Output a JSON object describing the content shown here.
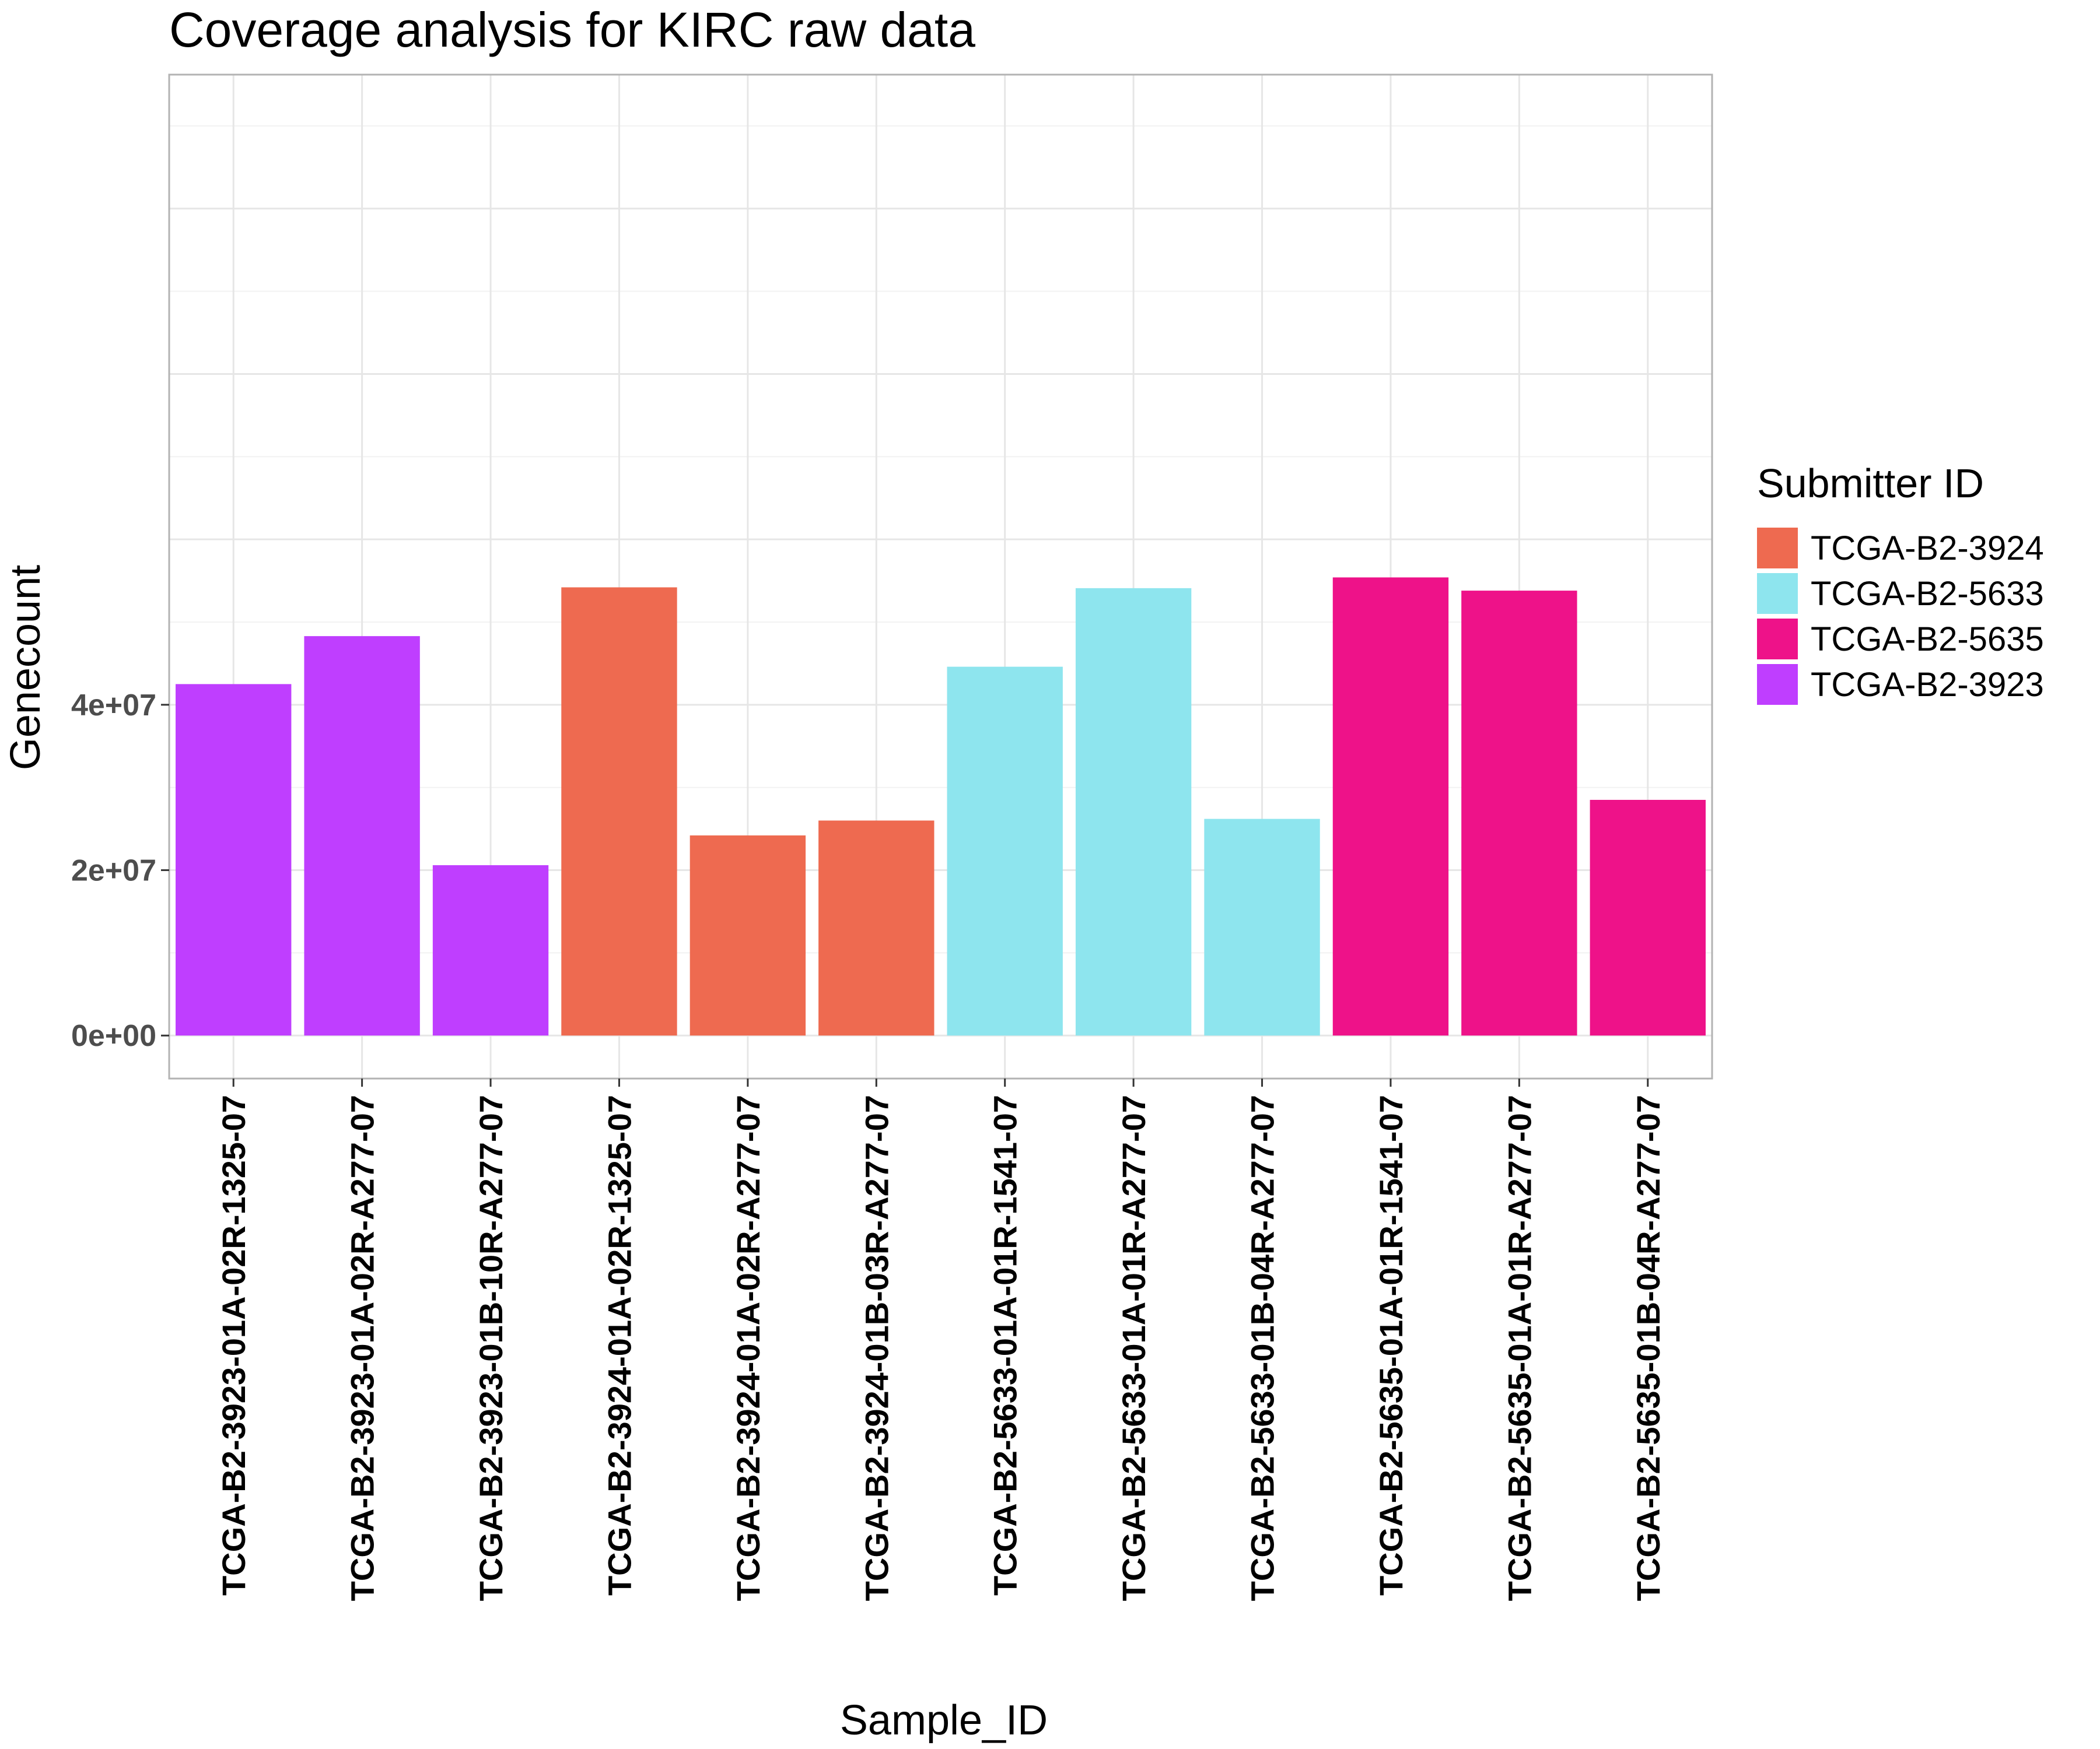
{
  "chart_data": {
    "type": "bar",
    "title": "Coverage analysis for KIRC raw data",
    "xlabel": "Sample_ID",
    "ylabel": "Genecount",
    "ylim": [
      -5200000,
      116200000
    ],
    "y_ticks": [
      0,
      20000000,
      40000000
    ],
    "y_tick_labels": [
      "0e+00",
      "2e+07",
      "4e+07"
    ],
    "grid": true,
    "legend": {
      "title": "Submitter ID",
      "placement": "right",
      "entries": [
        {
          "label": "TCGA-B2-3924",
          "color": "#EE6A50"
        },
        {
          "label": "TCGA-B2-5633",
          "color": "#8EE5EE"
        },
        {
          "label": "TCGA-B2-5635",
          "color": "#EE1289"
        },
        {
          "label": "TCGA-B2-3923",
          "color": "#BF3EFF"
        }
      ]
    },
    "categories": [
      "TCGA-B2-3923-01A-02R-1325-07",
      "TCGA-B2-3923-01A-02R-A277-07",
      "TCGA-B2-3923-01B-10R-A277-07",
      "TCGA-B2-3924-01A-02R-1325-07",
      "TCGA-B2-3924-01A-02R-A277-07",
      "TCGA-B2-3924-01B-03R-A277-07",
      "TCGA-B2-5633-01A-01R-1541-07",
      "TCGA-B2-5633-01A-01R-A277-07",
      "TCGA-B2-5633-01B-04R-A277-07",
      "TCGA-B2-5635-01A-01R-1541-07",
      "TCGA-B2-5635-01A-01R-A277-07",
      "TCGA-B2-5635-01B-04R-A277-07"
    ],
    "values": [
      42500000,
      48300000,
      20600000,
      54200000,
      24200000,
      26000000,
      44600000,
      54100000,
      26200000,
      55400000,
      53800000,
      28500000
    ],
    "groups": [
      "TCGA-B2-3923",
      "TCGA-B2-3923",
      "TCGA-B2-3923",
      "TCGA-B2-3924",
      "TCGA-B2-3924",
      "TCGA-B2-3924",
      "TCGA-B2-5633",
      "TCGA-B2-5633",
      "TCGA-B2-5633",
      "TCGA-B2-5635",
      "TCGA-B2-5635",
      "TCGA-B2-5635"
    ]
  }
}
